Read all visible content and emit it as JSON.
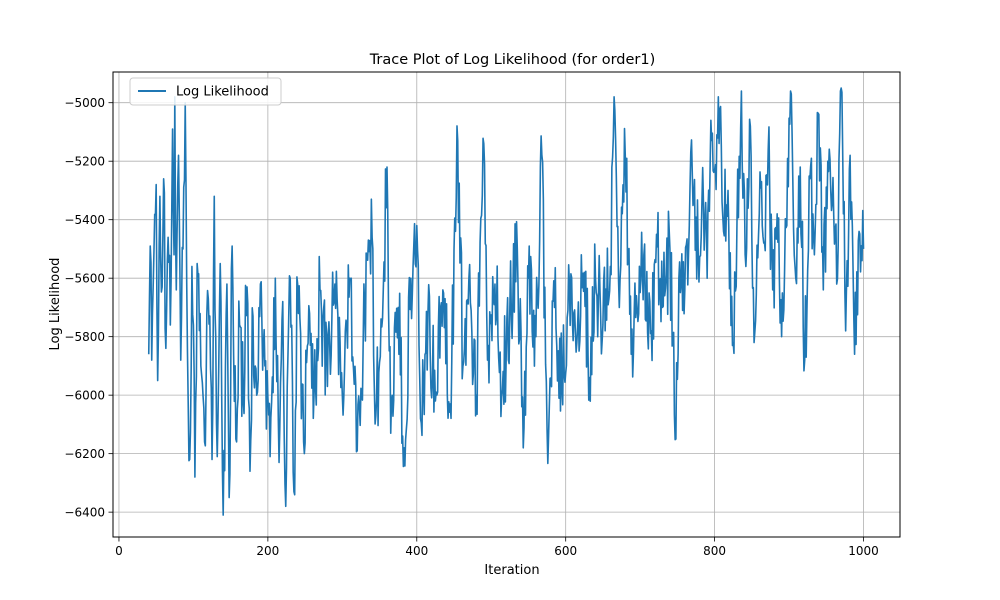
{
  "chart_data": {
    "type": "line",
    "title": "Trace Plot of Log Likelihood (for order1)",
    "xlabel": "Iteration",
    "ylabel": "Log Likelihood",
    "xlim": [
      -8,
      1049
    ],
    "ylim": [
      -6485,
      -4895
    ],
    "grid": true,
    "legend_placement": "upper-left",
    "x_ticks": [
      0,
      200,
      400,
      600,
      800,
      1000
    ],
    "x_tick_labels": [
      "0",
      "200",
      "400",
      "600",
      "800",
      "1000"
    ],
    "y_ticks": [
      -5000,
      -5200,
      -5400,
      -5600,
      -5800,
      -6000,
      -6200,
      -6400
    ],
    "y_tick_labels": [
      "−5000",
      "−5200",
      "−5400",
      "−5600",
      "−5800",
      "−6000",
      "−6200",
      "−6400"
    ],
    "series": [
      {
        "name": "Log Likelihood",
        "color": "#1f77b4",
        "x_start": 40,
        "x_end": 1000,
        "seed": 20240611,
        "keypoints": [
          [
            40,
            -5860
          ],
          [
            42,
            -5490
          ],
          [
            44,
            -5880
          ],
          [
            47,
            -5510
          ],
          [
            50,
            -5280
          ],
          [
            52,
            -5950
          ],
          [
            55,
            -5320
          ],
          [
            58,
            -5630
          ],
          [
            60,
            -5260
          ],
          [
            63,
            -5840
          ],
          [
            66,
            -5460
          ],
          [
            69,
            -5760
          ],
          [
            72,
            -5090
          ],
          [
            74,
            -5520
          ],
          [
            75,
            -4980
          ],
          [
            77,
            -5640
          ],
          [
            80,
            -5180
          ],
          [
            83,
            -5880
          ],
          [
            86,
            -5500
          ],
          [
            89,
            -5000
          ],
          [
            92,
            -5850
          ],
          [
            95,
            -6220
          ],
          [
            98,
            -5560
          ],
          [
            102,
            -6280
          ],
          [
            105,
            -5550
          ],
          [
            110,
            -5900
          ],
          [
            115,
            -6160
          ],
          [
            120,
            -5670
          ],
          [
            125,
            -6220
          ],
          [
            128,
            -5320
          ],
          [
            132,
            -6210
          ],
          [
            136,
            -5550
          ],
          [
            140,
            -6410
          ],
          [
            145,
            -5620
          ],
          [
            148,
            -6350
          ],
          [
            152,
            -5490
          ],
          [
            157,
            -6150
          ],
          [
            162,
            -5760
          ],
          [
            167,
            -6020
          ],
          [
            172,
            -5630
          ],
          [
            176,
            -6260
          ],
          [
            180,
            -5730
          ],
          [
            185,
            -6000
          ],
          [
            190,
            -5620
          ],
          [
            196,
            -5900
          ],
          [
            203,
            -6210
          ],
          [
            210,
            -5600
          ],
          [
            215,
            -6230
          ],
          [
            220,
            -5680
          ],
          [
            224,
            -6380
          ],
          [
            230,
            -5600
          ],
          [
            235,
            -6330
          ],
          [
            240,
            -5620
          ],
          [
            248,
            -6160
          ],
          [
            256,
            -5720
          ],
          [
            262,
            -6000
          ],
          [
            270,
            -5640
          ],
          [
            280,
            -5970
          ],
          [
            290,
            -5620
          ],
          [
            300,
            -6000
          ],
          [
            310,
            -5600
          ],
          [
            320,
            -6190
          ],
          [
            330,
            -5700
          ],
          [
            340,
            -5460
          ],
          [
            345,
            -6070
          ],
          [
            355,
            -5640
          ],
          [
            360,
            -5220
          ],
          [
            365,
            -6130
          ],
          [
            375,
            -5700
          ],
          [
            383,
            -6180
          ],
          [
            392,
            -5600
          ],
          [
            400,
            -5420
          ],
          [
            405,
            -6080
          ],
          [
            415,
            -5720
          ],
          [
            425,
            -6020
          ],
          [
            435,
            -5640
          ],
          [
            445,
            -6030
          ],
          [
            455,
            -5130
          ],
          [
            462,
            -5900
          ],
          [
            470,
            -5600
          ],
          [
            480,
            -6000
          ],
          [
            490,
            -5140
          ],
          [
            495,
            -5880
          ],
          [
            505,
            -5620
          ],
          [
            515,
            -5980
          ],
          [
            525,
            -5700
          ],
          [
            535,
            -5500
          ],
          [
            543,
            -6180
          ],
          [
            550,
            -5600
          ],
          [
            560,
            -5800
          ],
          [
            568,
            -5180
          ],
          [
            575,
            -6120
          ],
          [
            585,
            -5700
          ],
          [
            595,
            -5980
          ],
          [
            605,
            -5620
          ],
          [
            615,
            -5820
          ],
          [
            625,
            -5580
          ],
          [
            632,
            -5940
          ],
          [
            640,
            -5600
          ],
          [
            650,
            -5760
          ],
          [
            660,
            -5560
          ],
          [
            665,
            -4980
          ],
          [
            672,
            -5700
          ],
          [
            680,
            -5180
          ],
          [
            688,
            -5860
          ],
          [
            695,
            -5660
          ],
          [
            705,
            -5520
          ],
          [
            715,
            -5780
          ],
          [
            722,
            -5450
          ],
          [
            730,
            -5700
          ],
          [
            740,
            -5500
          ],
          [
            748,
            -6150
          ],
          [
            752,
            -5600
          ],
          [
            760,
            -5640
          ],
          [
            770,
            -5240
          ],
          [
            778,
            -5520
          ],
          [
            785,
            -5340
          ],
          [
            790,
            -5600
          ],
          [
            795,
            -5060
          ],
          [
            800,
            -5230
          ],
          [
            805,
            -4980
          ],
          [
            812,
            -5440
          ],
          [
            818,
            -5300
          ],
          [
            824,
            -5830
          ],
          [
            830,
            -5420
          ],
          [
            836,
            -4960
          ],
          [
            842,
            -5560
          ],
          [
            848,
            -5080
          ],
          [
            853,
            -5820
          ],
          [
            860,
            -5380
          ],
          [
            866,
            -5480
          ],
          [
            872,
            -5160
          ],
          [
            878,
            -5640
          ],
          [
            884,
            -5380
          ],
          [
            890,
            -5800
          ],
          [
            897,
            -5420
          ],
          [
            903,
            -4970
          ],
          [
            909,
            -5600
          ],
          [
            915,
            -5220
          ],
          [
            921,
            -5880
          ],
          [
            928,
            -5260
          ],
          [
            934,
            -5520
          ],
          [
            940,
            -5040
          ],
          [
            946,
            -5640
          ],
          [
            952,
            -5200
          ],
          [
            958,
            -5340
          ],
          [
            964,
            -5620
          ],
          [
            970,
            -4950
          ],
          [
            976,
            -5780
          ],
          [
            982,
            -5180
          ],
          [
            988,
            -5860
          ],
          [
            994,
            -5440
          ],
          [
            998,
            -5540
          ],
          [
            1000,
            -5500
          ]
        ]
      }
    ]
  }
}
